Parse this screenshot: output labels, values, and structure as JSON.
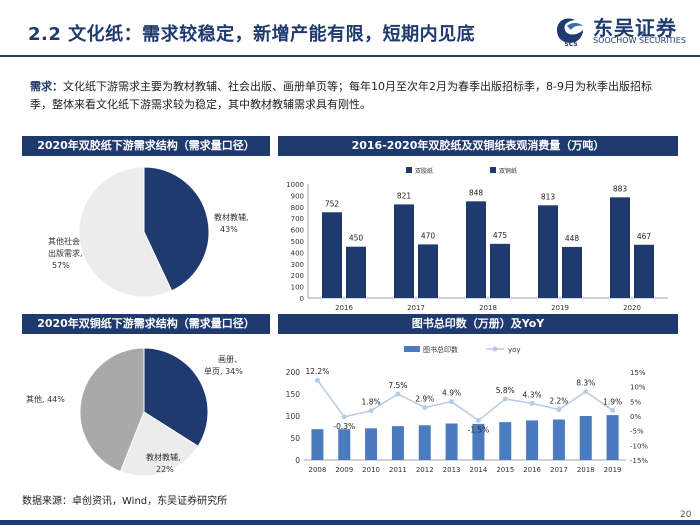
{
  "header": {
    "title": "2.2 文化纸：需求较稳定，新增产能有限，短期内见底",
    "logo_text": "东吴证券",
    "logo_en": "SOOCHOW SECURITIES",
    "logo_mark": "SCS"
  },
  "description": {
    "keyword": "需求：",
    "text": "文化纸下游需求主要为教材教辅、社会出版、画册单页等；每年10月至次年2月为春季出版招标季，8-9月为秋季出版招标季，整体来看文化纸下游需求较为稳定，其中教材教辅需求具有刚性。"
  },
  "panels": {
    "pie1_title": "2020年双胶纸下游需求结构（需求量口径）",
    "bar_title": "2016-2020年双胶纸及双铜纸表观消费量（万吨）",
    "pie2_title": "2020年双铜纸下游需求结构（需求量口径）",
    "combo_title": "图书总印数（万册）及YoY"
  },
  "footer": {
    "source": "数据来源：卓创资讯，Wind，东吴证券研究所",
    "page": "20"
  },
  "colors": {
    "navy": "#1f3a6e",
    "gray": "#d6d6d6",
    "light": "#ececec",
    "mid": "#a9a9a9",
    "bar_blue": "#4a7bbf",
    "line_blue": "#b7cbe6"
  },
  "chart_data": [
    {
      "type": "pie",
      "title": "2020年双胶纸下游需求结构（需求量口径）",
      "labels": [
        "教材教辅,",
        "其他社会出版需求,"
      ],
      "values": [
        43,
        57
      ],
      "value_labels": [
        "43%",
        "57%"
      ]
    },
    {
      "type": "bar",
      "title": "2016-2020年双胶纸及双铜纸表观消费量（万吨）",
      "categories": [
        "2016",
        "2017",
        "2018",
        "2019",
        "2020"
      ],
      "series": [
        {
          "name": "双胶纸",
          "values": [
            752,
            821,
            848,
            813,
            883
          ]
        },
        {
          "name": "双铜纸",
          "values": [
            450,
            470,
            475,
            448,
            467
          ]
        }
      ],
      "ylim": [
        0,
        1000
      ],
      "yticks": [
        0,
        100,
        200,
        300,
        400,
        500,
        600,
        700,
        800,
        900,
        1000
      ],
      "legend": "top"
    },
    {
      "type": "pie",
      "title": "2020年双铜纸下游需求结构（需求量口径）",
      "labels": [
        "画册、单页,",
        "教材教辅,",
        "其他,"
      ],
      "values": [
        34,
        22,
        44
      ],
      "value_labels": [
        "34%",
        "22%",
        "44%"
      ]
    },
    {
      "type": "bar",
      "title": "图书总印数（万册）及YoY",
      "categories": [
        "2008",
        "2009",
        "2010",
        "2011",
        "2012",
        "2013",
        "2014",
        "2015",
        "2016",
        "2017",
        "2018",
        "2019"
      ],
      "series": [
        {
          "name": "图书总印数",
          "values": [
            70,
            70,
            72,
            77,
            79,
            83,
            82,
            86,
            90,
            92,
            100,
            102
          ]
        },
        {
          "name": "yoy",
          "values": [
            12.2,
            -0.3,
            1.8,
            7.5,
            2.9,
            4.9,
            -1.5,
            5.8,
            4.3,
            2.2,
            8.3,
            1.9
          ]
        }
      ],
      "yoy_labels": [
        "12.2%",
        "-0.3%",
        "1.8%",
        "7.5%",
        "2.9%",
        "4.9%",
        "-1.5%",
        "5.8%",
        "4.3%",
        "2.2%",
        "8.3%",
        "1.9%"
      ],
      "ylim": [
        0,
        200
      ],
      "yticks": [
        0,
        50,
        100,
        150,
        200
      ],
      "y2lim": [
        -15,
        15
      ],
      "y2ticks": [
        "15%",
        "10%",
        "5%",
        "0%",
        "-5%",
        "-10%",
        "-15%"
      ],
      "legend": "top"
    }
  ]
}
